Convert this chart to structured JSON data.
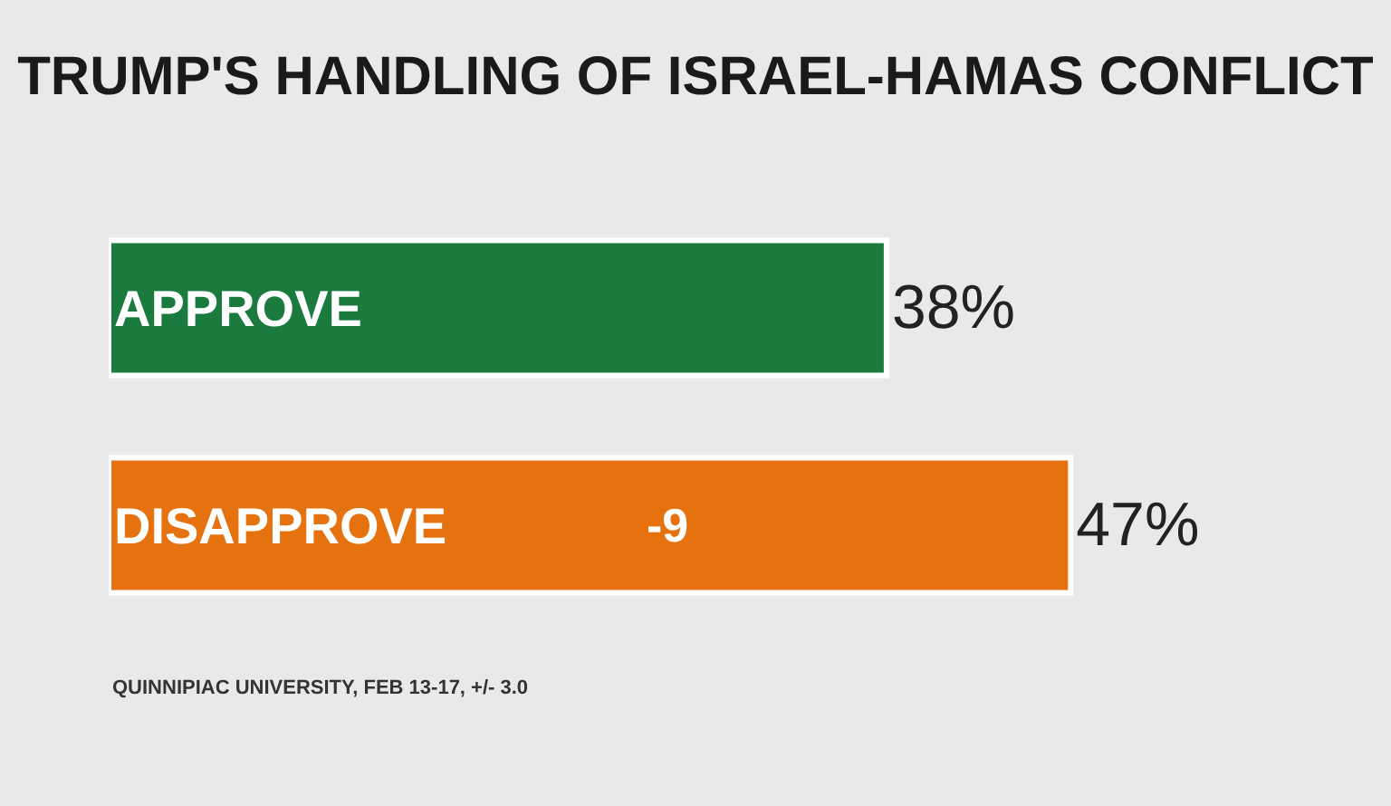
{
  "chart_data": {
    "type": "bar",
    "orientation": "horizontal",
    "title": "TRUMP'S HANDLING OF ISRAEL-HAMAS CONFLICT",
    "categories": [
      "APPROVE",
      "DISAPPROVE"
    ],
    "values": [
      38,
      47
    ],
    "colors": [
      "#1b7a3e",
      "#e5710f"
    ],
    "value_labels": [
      "38%",
      "47%"
    ],
    "annotations": [
      "-9",
      "QUINNIPIAC UNIVERSITY, FEB 13-17, +/- 3.0"
    ],
    "grid": false,
    "legend": false
  }
}
